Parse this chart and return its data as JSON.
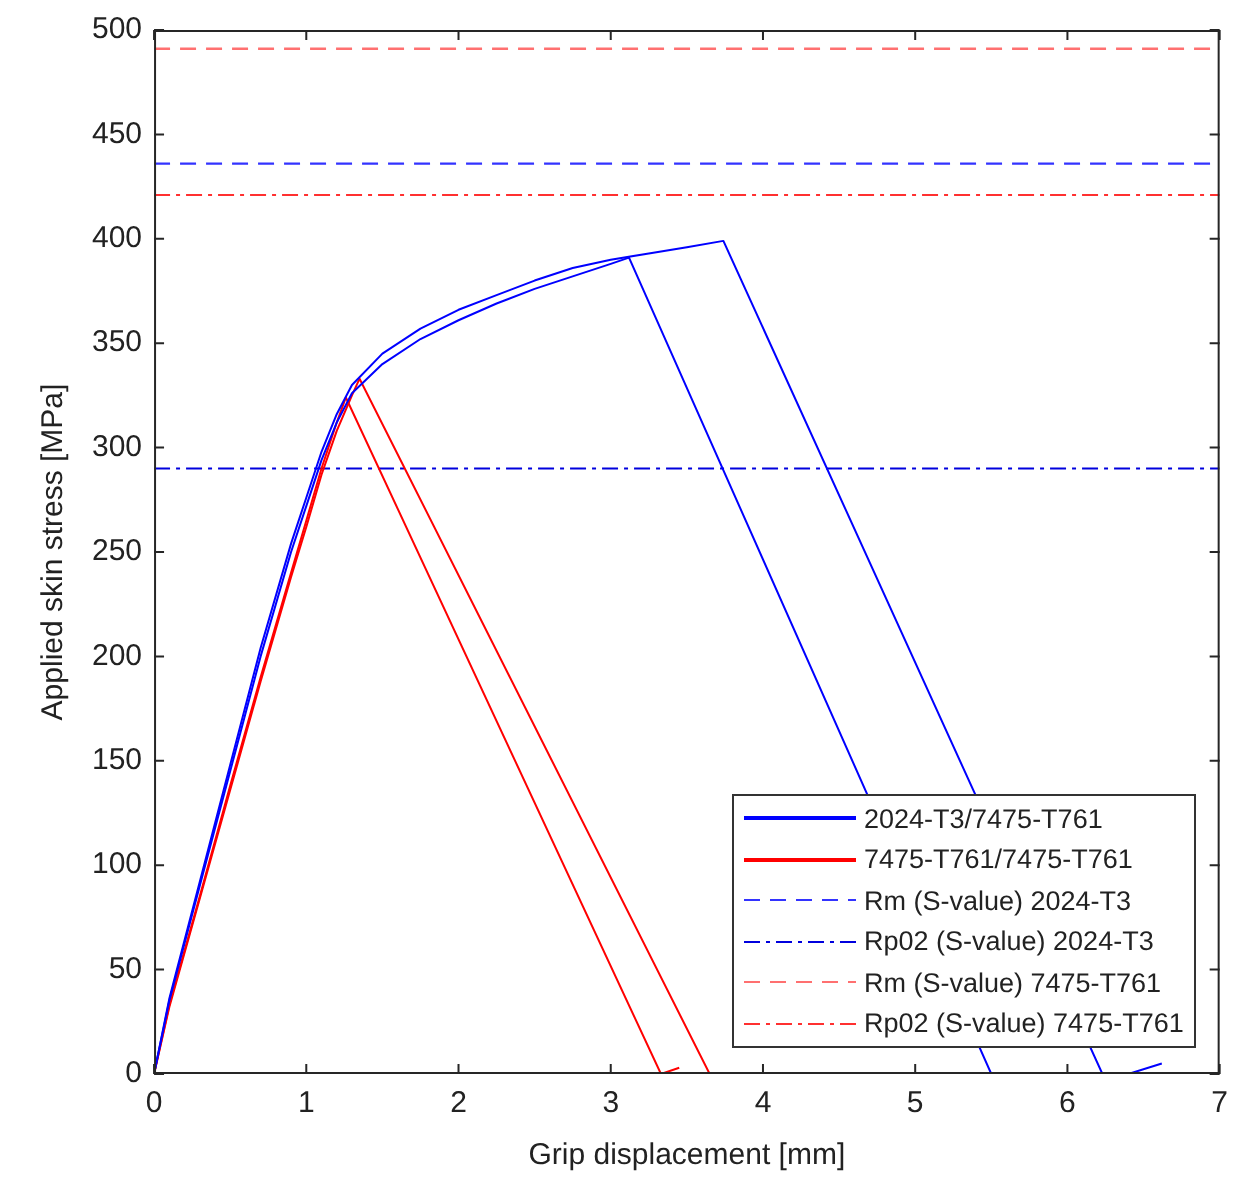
{
  "chart_data": {
    "type": "line",
    "xlabel": "Grip displacement [mm]",
    "ylabel": "Applied skin stress [MPa]",
    "xlim": [
      0,
      7
    ],
    "ylim": [
      0,
      500
    ],
    "xticks": [
      0,
      1,
      2,
      3,
      4,
      5,
      6,
      7
    ],
    "yticks": [
      0,
      50,
      100,
      150,
      200,
      250,
      300,
      350,
      400,
      450,
      500
    ],
    "grid": false,
    "legend": "bottom right",
    "marker": "none",
    "line_style": "solid",
    "series": [
      {
        "name": "2024-T3/7475-T761",
        "color": "#0000ff",
        "x": [
          0,
          0.1,
          0.3,
          0.5,
          0.7,
          0.9,
          1.0,
          1.1,
          1.2,
          1.3,
          1.5,
          1.75,
          2.0,
          2.25,
          2.5,
          2.75,
          3.0,
          3.12,
          5.5
        ],
        "values": [
          0,
          35,
          90,
          145,
          200,
          250,
          272,
          294,
          312,
          326,
          340,
          352,
          361,
          369,
          376,
          382,
          388,
          391,
          0
        ]
      },
      {
        "color": "#0000ff",
        "x": [
          0,
          0.1,
          0.3,
          0.5,
          0.7,
          0.9,
          1.0,
          1.1,
          1.2,
          1.3,
          1.5,
          1.75,
          2.0,
          2.25,
          2.5,
          2.75,
          3.0,
          3.25,
          3.5,
          3.74,
          6.23,
          6.4,
          6.62
        ],
        "values": [
          0,
          36,
          92,
          148,
          204,
          254,
          276,
          298,
          316,
          330,
          345,
          357,
          366,
          373,
          380,
          386,
          390,
          393,
          396,
          399,
          0,
          0,
          5
        ]
      },
      {
        "name": "7475-T761/7475-T761",
        "color": "#ff0000",
        "x": [
          0,
          0.1,
          0.3,
          0.5,
          0.7,
          0.9,
          1.0,
          1.1,
          1.2,
          1.26,
          3.33,
          3.45
        ],
        "values": [
          0,
          33,
          85,
          138,
          190,
          240,
          265,
          290,
          312,
          324,
          0,
          3
        ]
      },
      {
        "color": "#ff0000",
        "x": [
          0,
          0.1,
          0.3,
          0.5,
          0.7,
          0.9,
          1.0,
          1.1,
          1.2,
          1.3,
          1.35,
          3.65
        ],
        "values": [
          0,
          32,
          84,
          136,
          188,
          238,
          262,
          287,
          308,
          325,
          333,
          0
        ]
      }
    ],
    "ref_lines": [
      {
        "axis": "y",
        "value": 436,
        "label": "Rm (S-value) 2024-T3",
        "color": "#3333ff",
        "line_style": "dashed"
      },
      {
        "axis": "y",
        "value": 290,
        "label": "Rp02 (S-value) 2024-T3",
        "color": "#0000dd",
        "line_style": "dashdot"
      },
      {
        "axis": "y",
        "value": 491,
        "label": "Rm (S-value) 7475-T761",
        "color": "#ff7070",
        "line_style": "dashed"
      },
      {
        "axis": "y",
        "value": 421,
        "label": "Rp02 (S-value) 7475-T761",
        "color": "#ff3030",
        "line_style": "dashdot"
      }
    ]
  }
}
